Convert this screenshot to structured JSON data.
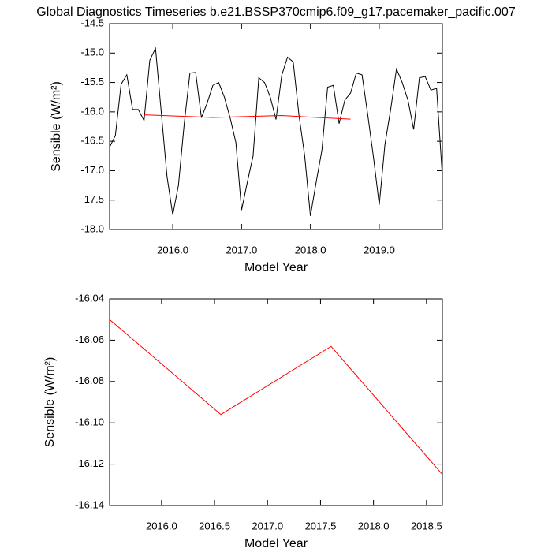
{
  "chart_data": [
    {
      "type": "line",
      "title": "Global Diagnostics Timeseries b.e21.BSSP370cmip6.f09_g17.pacemaker_pacific.007",
      "x_label": "Model Year",
      "y_label": "Sensible (W/m²)",
      "xlim": [
        2015.083,
        2019.917
      ],
      "ylim": [
        -18.0,
        -14.5
      ],
      "xticks": [
        {
          "value": 2016,
          "label": "2016.0"
        },
        {
          "value": 2017,
          "label": "2017.0"
        },
        {
          "value": 2018,
          "label": "2018.0"
        },
        {
          "value": 2019,
          "label": "2019.0"
        }
      ],
      "yticks": [
        -14.5,
        {
          "value": -15,
          "label": "-15.0"
        },
        -15.5,
        {
          "value": -16,
          "label": "-16.0"
        },
        -16.5,
        {
          "value": -17,
          "label": "-17.0"
        },
        -17.5,
        {
          "value": -18,
          "label": "-18.0"
        }
      ],
      "series": [
        {
          "color": "#000000",
          "x": [
            2015.083,
            2015.167,
            2015.25,
            2015.333,
            2015.417,
            2015.5,
            2015.583,
            2015.667,
            2015.75,
            2015.833,
            2015.917,
            2016.0,
            2016.083,
            2016.167,
            2016.25,
            2016.333,
            2016.417,
            2016.5,
            2016.583,
            2016.667,
            2016.75,
            2016.833,
            2016.917,
            2017.0,
            2017.083,
            2017.167,
            2017.25,
            2017.333,
            2017.417,
            2017.5,
            2017.583,
            2017.667,
            2017.75,
            2017.833,
            2017.917,
            2018.0,
            2018.083,
            2018.167,
            2018.25,
            2018.333,
            2018.417,
            2018.5,
            2018.583,
            2018.667,
            2018.75,
            2018.833,
            2018.917,
            2019.0,
            2019.083,
            2019.167,
            2019.25,
            2019.333,
            2019.417,
            2019.5,
            2019.583,
            2019.667,
            2019.75,
            2019.833,
            2019.917
          ],
          "values": [
            -16.6,
            -16.4,
            -15.53,
            -15.37,
            -15.96,
            -15.96,
            -16.15,
            -15.12,
            -14.92,
            -16.0,
            -17.1,
            -17.75,
            -17.25,
            -16.2,
            -15.34,
            -15.33,
            -16.1,
            -15.85,
            -15.55,
            -15.5,
            -15.75,
            -16.1,
            -16.52,
            -17.67,
            -17.2,
            -16.75,
            -15.42,
            -15.5,
            -15.75,
            -16.13,
            -15.38,
            -15.07,
            -15.15,
            -16.05,
            -16.75,
            -17.77,
            -17.2,
            -16.65,
            -15.58,
            -15.55,
            -16.2,
            -15.8,
            -15.68,
            -15.34,
            -15.37,
            -16.05,
            -16.78,
            -17.58,
            -16.55,
            -15.95,
            -15.27,
            -15.5,
            -15.8,
            -16.3,
            -15.42,
            -15.4,
            -15.63,
            -15.6,
            -17.1
          ]
        },
        {
          "color": "#ff0000",
          "x": [
            2015.583,
            2016.583,
            2017.583,
            2018.583
          ],
          "values": [
            -16.05,
            -16.096,
            -16.063,
            -16.125
          ]
        }
      ]
    },
    {
      "type": "line",
      "x_label": "Model Year",
      "y_label": "Sensible (W/m²)",
      "xlim": [
        2015.51,
        2018.65
      ],
      "ylim": [
        -16.14,
        -16.04
      ],
      "xticks": [
        {
          "value": 2016,
          "label": "2016.0"
        },
        2016.5,
        {
          "value": 2017,
          "label": "2017.0"
        },
        2017.5,
        {
          "value": 2018,
          "label": "2018.0"
        },
        2018.5
      ],
      "yticks": [
        -16.04,
        -16.06,
        -16.08,
        {
          "value": -16.1,
          "label": "-16.10"
        },
        -16.12,
        -16.14
      ],
      "series": [
        {
          "color": "#ff0000",
          "x": [
            2015.51,
            2016.56,
            2017.6,
            2018.65
          ],
          "values": [
            -16.05,
            -16.096,
            -16.063,
            -16.125
          ]
        }
      ]
    }
  ]
}
